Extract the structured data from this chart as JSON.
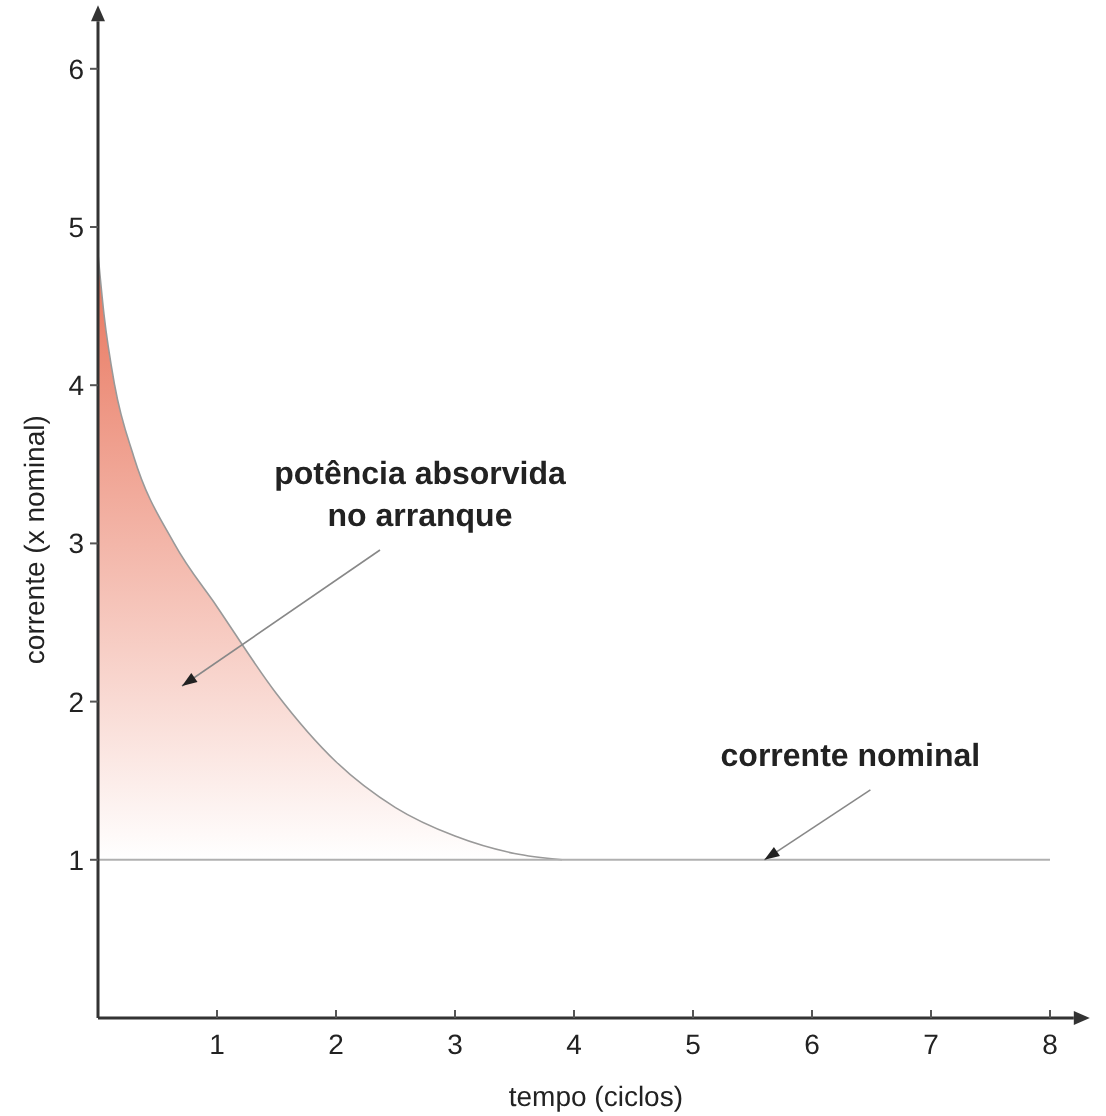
{
  "chart_data": {
    "type": "area",
    "xlabel": "tempo (ciclos)",
    "ylabel": "corrente (x nominal)",
    "xlim": [
      0,
      8.2
    ],
    "ylim": [
      0,
      6.3
    ],
    "xticks": [
      1,
      2,
      3,
      4,
      5,
      6,
      7,
      8
    ],
    "yticks": [
      1,
      2,
      3,
      4,
      5,
      6
    ],
    "grid": false,
    "series": [
      {
        "color": "#e8735a",
        "x": [
          0,
          0.05,
          0.14,
          0.3,
          0.64,
          1,
          1.5,
          2,
          2.5,
          3,
          3.5,
          3.9
        ],
        "values": [
          4.83,
          4.45,
          4,
          3.55,
          3,
          2.6,
          2.05,
          1.62,
          1.33,
          1.15,
          1.04,
          1
        ]
      }
    ],
    "ref_lines": [
      {
        "axis": "y",
        "value": 1,
        "color": "#b0b0b0"
      }
    ],
    "annotations": [
      "potência absorvida\nno arranque",
      {
        "text": "corrente nominal",
        "x": 5.6,
        "y": 1
      }
    ]
  }
}
